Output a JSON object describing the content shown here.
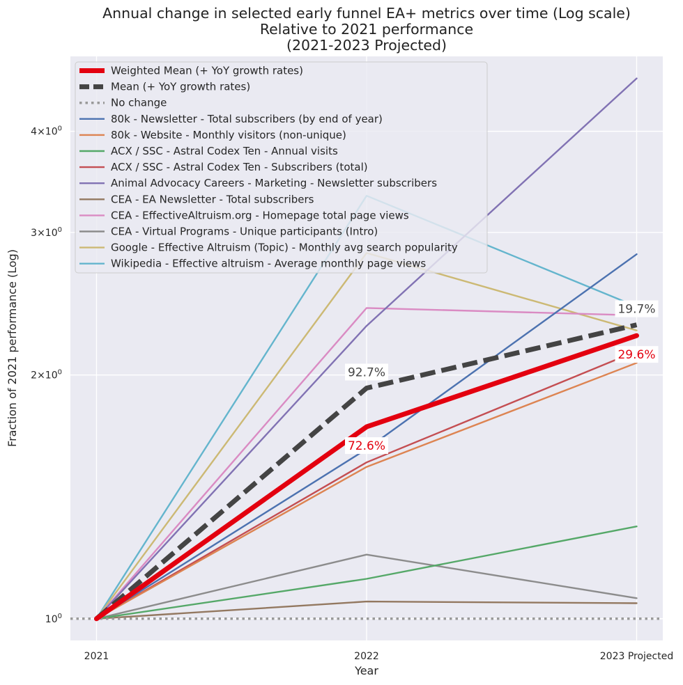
{
  "chart_data": {
    "type": "line",
    "title_lines": [
      "Annual change in selected early funnel EA+ metrics over time (Log scale)",
      "Relative to 2021 performance",
      "(2021-2023 Projected)"
    ],
    "xlabel": "Year",
    "ylabel": "Fraction of 2021 performance (Log)",
    "y_scale": "log",
    "ylim": [
      0.94,
      4.95
    ],
    "categories": [
      "2021",
      "2022",
      "2023 Projected"
    ],
    "y_ticks": [
      {
        "value": 1,
        "label": "10^0"
      },
      {
        "value": 2,
        "label": "2×10^0"
      },
      {
        "value": 3,
        "label": "3×10^0"
      },
      {
        "value": 4,
        "label": "4×10^0"
      }
    ],
    "legend_position": "upper-left",
    "series": [
      {
        "name": "Weighted Mean (+ YoY growth rates)",
        "values": [
          1,
          1.726,
          2.237
        ],
        "color": "#e3000f",
        "style": "solid",
        "weight": "heavy"
      },
      {
        "name": "Mean (+ YoY growth rates)",
        "values": [
          1,
          1.927,
          2.307
        ],
        "color": "#444444",
        "style": "dashed",
        "weight": "heavy"
      },
      {
        "name": "No change",
        "values": [
          1,
          1,
          1
        ],
        "color": "#999999",
        "style": "dotted",
        "weight": "medium"
      },
      {
        "name": "80k - Newsletter - Total subscribers (by end of year)",
        "values": [
          1,
          1.62,
          2.82
        ],
        "color": "#4c72b0",
        "style": "solid",
        "weight": "normal"
      },
      {
        "name": "80k - Website - Monthly visitors (non-unique)",
        "values": [
          1,
          1.54,
          2.07
        ],
        "color": "#dd8452",
        "style": "solid",
        "weight": "normal"
      },
      {
        "name": "ACX / SSC - Astral Codex Ten - Annual visits",
        "values": [
          1,
          1.12,
          1.3
        ],
        "color": "#55a868",
        "style": "solid",
        "weight": "normal"
      },
      {
        "name": "ACX / SSC - Astral Codex Ten - Subscribers (total)",
        "values": [
          1,
          1.56,
          2.14
        ],
        "color": "#c44e52",
        "style": "solid",
        "weight": "normal"
      },
      {
        "name": "Animal Advocacy Careers - Marketing - Newsletter subscribers",
        "values": [
          1,
          2.3,
          4.65
        ],
        "color": "#8172b3",
        "style": "solid",
        "weight": "normal"
      },
      {
        "name": "CEA - EA Newsletter - Total subscribers",
        "values": [
          1,
          1.05,
          1.045
        ],
        "color": "#937860",
        "style": "solid",
        "weight": "normal"
      },
      {
        "name": "CEA - EffectiveAltruism.org - Homepage total page views",
        "values": [
          1,
          2.42,
          2.37
        ],
        "color": "#da8bc3",
        "style": "solid",
        "weight": "normal"
      },
      {
        "name": "CEA - Virtual Programs - Unique participants (Intro)",
        "values": [
          1,
          1.2,
          1.06
        ],
        "color": "#8c8c8c",
        "style": "solid",
        "weight": "normal"
      },
      {
        "name": "Google - Effective Altruism (Topic) - Monthly avg search popularity",
        "values": [
          1,
          2.83,
          2.27
        ],
        "color": "#ccb974",
        "style": "solid",
        "weight": "normal"
      },
      {
        "name": "Wikipedia - Effective altruism - Average monthly page views",
        "values": [
          1,
          3.33,
          2.43
        ],
        "color": "#64b5cd",
        "style": "solid",
        "weight": "normal"
      }
    ],
    "annotations": [
      {
        "text": "92.7%",
        "series": "Mean (+ YoY growth rates)",
        "category": "2022",
        "color": "#444444",
        "placement": "above"
      },
      {
        "text": "72.6%",
        "series": "Weighted Mean (+ YoY growth rates)",
        "category": "2022",
        "color": "#e3000f",
        "placement": "below"
      },
      {
        "text": "19.7%",
        "series": "Mean (+ YoY growth rates)",
        "category": "2023 Projected",
        "color": "#444444",
        "placement": "above"
      },
      {
        "text": "29.6%",
        "series": "Weighted Mean (+ YoY growth rates)",
        "category": "2023 Projected",
        "color": "#e3000f",
        "placement": "below"
      }
    ]
  }
}
